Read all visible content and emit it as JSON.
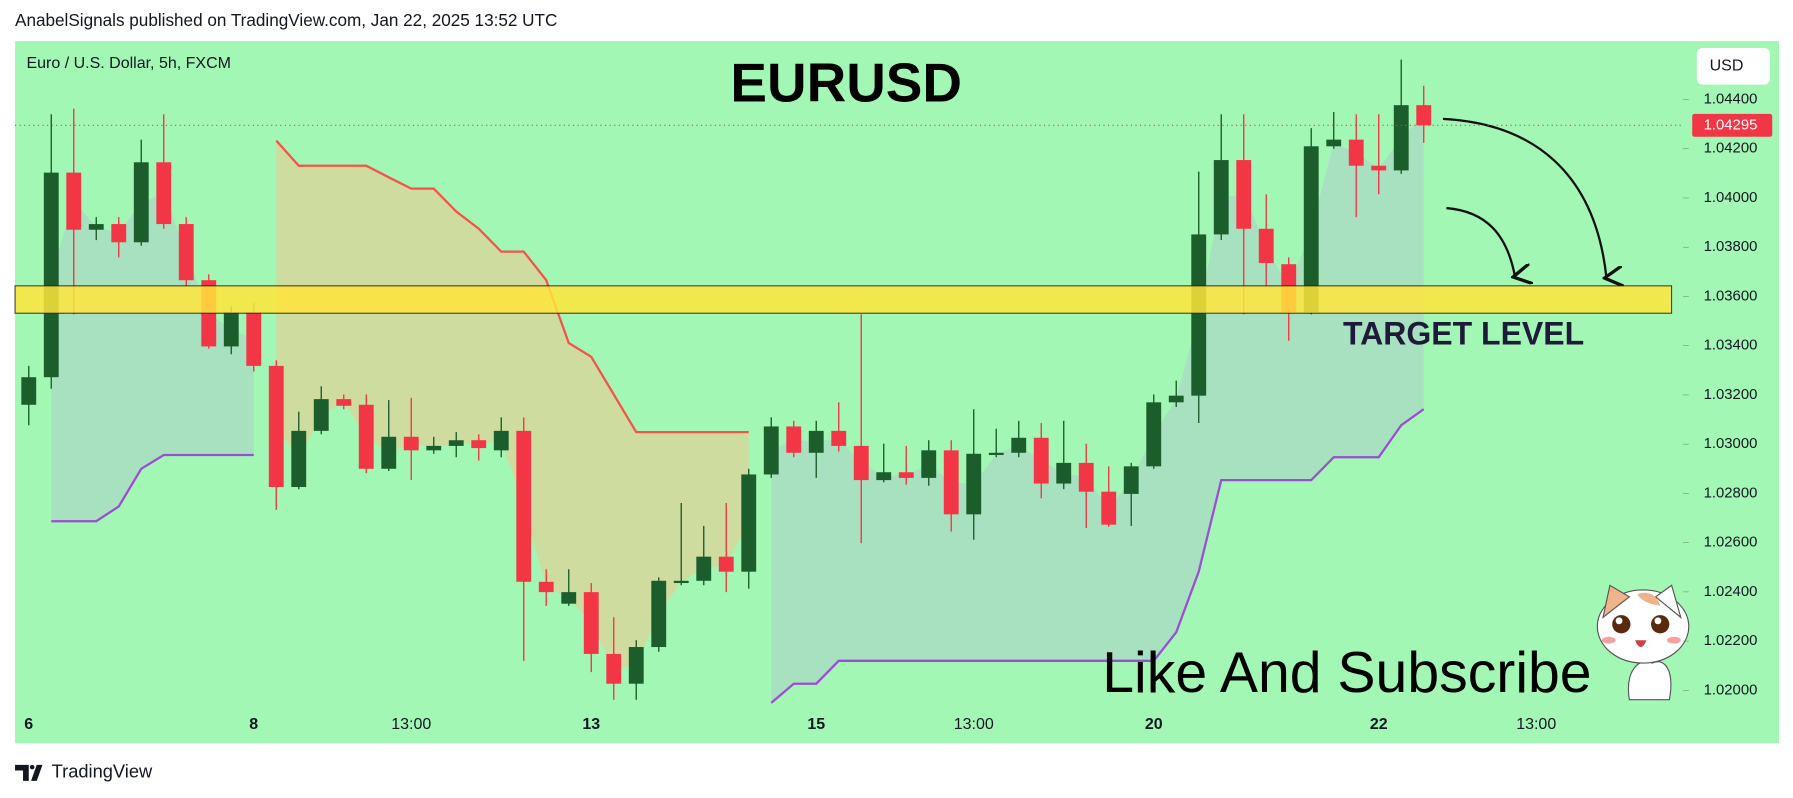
{
  "header": "AnabelSignals published on TradingView.com, Jan 22, 2025 13:52 UTC",
  "footer": "TradingView",
  "chart_data": {
    "type": "candlestick",
    "title": "EURUSD",
    "symbol": "Euro / U.S. Dollar, 5h, FXCM",
    "currency": "USD",
    "annotations": [
      "TARGET LEVEL",
      "Like And Subscribe"
    ],
    "up_color": "#1b5e2b",
    "down_color": "#f23645",
    "background": "#a3f7b5",
    "ylim": [
      1.01925,
      1.04637
    ],
    "yticks": [
      {
        "value": 1.02,
        "label": "1.02000"
      },
      {
        "value": 1.022,
        "label": "1.02200"
      },
      {
        "value": 1.024,
        "label": "1.02400"
      },
      {
        "value": 1.026,
        "label": "1.02600"
      },
      {
        "value": 1.028,
        "label": "1.02800"
      },
      {
        "value": 1.03,
        "label": "1.03000"
      },
      {
        "value": 1.032,
        "label": "1.03200"
      },
      {
        "value": 1.034,
        "label": "1.03400"
      },
      {
        "value": 1.036,
        "label": "1.03600"
      },
      {
        "value": 1.038,
        "label": "1.03800"
      },
      {
        "value": 1.04,
        "label": "1.04000"
      },
      {
        "value": 1.042,
        "label": "1.04200"
      },
      {
        "value": 1.044,
        "label": "1.04400"
      }
    ],
    "last_price": {
      "value": 1.04295,
      "label": "1.04295"
    },
    "zone": {
      "range": [
        1.03532,
        1.03643
      ],
      "color": "#ffe53b"
    },
    "categories": [
      "6",
      null,
      null,
      null,
      null,
      null,
      null,
      null,
      null,
      null,
      "8",
      null,
      null,
      null,
      null,
      null,
      null,
      "13:00",
      null,
      null,
      null,
      null,
      null,
      null,
      null,
      "13",
      null,
      null,
      null,
      null,
      null,
      null,
      null,
      null,
      null,
      "15",
      null,
      null,
      null,
      null,
      null,
      null,
      "13:00",
      null,
      null,
      null,
      null,
      null,
      null,
      null,
      "20",
      null,
      null,
      null,
      null,
      null,
      null,
      null,
      null,
      null,
      "22",
      null,
      null,
      null,
      null,
      null,
      null,
      "13:00",
      null,
      null,
      null,
      null,
      null,
      null
    ],
    "open": [
      1.0316,
      1.03272,
      1.04103,
      1.03871,
      1.03894,
      1.0382,
      1.04145,
      1.03894,
      1.03666,
      1.03397,
      1.03536,
      1.03318,
      1.02826,
      1.03054,
      1.03183,
      1.0316,
      1.029,
      1.0303,
      1.02975,
      1.02993,
      1.03016,
      1.02975,
      1.03054,
      1.02441,
      1.02352,
      1.02399,
      1.02148,
      1.02027,
      1.02176,
      1.02436,
      1.02445,
      1.02543,
      1.02482,
      1.02877,
      1.03072,
      1.02965,
      1.03054,
      1.02993,
      1.02854,
      1.02886,
      1.02863,
      1.02975,
      1.02715,
      1.02956,
      1.02965,
      1.03026,
      1.0284,
      1.02924,
      1.02807,
      1.02798,
      1.0291,
      1.0317,
      1.03197,
      1.03852,
      1.04154,
      1.03875,
      1.03731,
      1.03536,
      1.0421,
      1.04237,
      1.04131,
      1.04112,
      1.04377,
      null,
      null,
      null,
      null,
      null,
      null,
      null,
      null,
      null,
      null,
      null
    ],
    "high": [
      1.03318,
      1.0434,
      1.04363,
      1.03922,
      1.03922,
      1.04237,
      1.0434,
      1.03922,
      1.0369,
      1.0356,
      1.03574,
      1.03341,
      1.03132,
      1.03235,
      1.03202,
      1.03202,
      1.03179,
      1.03188,
      1.0303,
      1.03049,
      1.0304,
      1.03109,
      1.03109,
      1.02492,
      1.02492,
      1.02436,
      1.02297,
      1.02204,
      1.02459,
      1.02761,
      1.02668,
      1.02761,
      1.029,
      1.03109,
      1.03095,
      1.03095,
      1.0317,
      1.03527,
      1.03002,
      1.02993,
      1.03016,
      1.03016,
      1.03142,
      1.03063,
      1.03095,
      1.03086,
      1.03095,
      1.03002,
      1.0291,
      1.02924,
      1.03202,
      1.03258,
      1.04107,
      1.0434,
      1.0434,
      1.04015,
      1.03759,
      1.04284,
      1.04349,
      1.0434,
      1.0434,
      1.04562,
      1.04456,
      null,
      null,
      null,
      null,
      null,
      null,
      null,
      null,
      null,
      null,
      null
    ],
    "low": [
      1.03077,
      1.03225,
      1.03527,
      1.03829,
      1.03759,
      1.03806,
      1.03875,
      1.03643,
      1.03388,
      1.03365,
      1.03295,
      1.02733,
      1.02817,
      1.0304,
      1.03142,
      1.02882,
      1.02891,
      1.02854,
      1.02961,
      1.02947,
      1.02933,
      1.02947,
      1.0212,
      1.02343,
      1.02343,
      1.02074,
      1.01962,
      1.01962,
      1.02157,
      1.02427,
      1.02427,
      1.02399,
      1.02413,
      1.02863,
      1.02947,
      1.02863,
      1.0297,
      1.02598,
      1.02845,
      1.02835,
      1.02831,
      1.02645,
      1.02612,
      1.02947,
      1.02947,
      1.0278,
      1.02817,
      1.02659,
      1.02664,
      1.02668,
      1.029,
      1.03151,
      1.03086,
      1.03829,
      1.03527,
      1.03643,
      1.0342,
      1.03527,
      1.042,
      1.03922,
      1.04015,
      1.04098,
      1.04224,
      null,
      null,
      null,
      null,
      null,
      null,
      null,
      null,
      null,
      null,
      null
    ],
    "close": [
      1.03272,
      1.04103,
      1.03871,
      1.03894,
      1.0382,
      1.04145,
      1.03894,
      1.03666,
      1.03397,
      1.03536,
      1.03318,
      1.02826,
      1.03054,
      1.03183,
      1.03156,
      1.029,
      1.0303,
      1.02975,
      1.02993,
      1.03016,
      1.02984,
      1.03054,
      1.02441,
      1.02399,
      1.02399,
      1.02148,
      1.02027,
      1.02176,
      1.02445,
      1.02445,
      1.02543,
      1.02482,
      1.02877,
      1.03072,
      1.02965,
      1.03054,
      1.02993,
      1.02854,
      1.02886,
      1.02863,
      1.02975,
      1.02715,
      1.02961,
      1.02965,
      1.03026,
      1.0284,
      1.02924,
      1.02807,
      1.02673,
      1.0291,
      1.0317,
      1.03197,
      1.03852,
      1.04154,
      1.03875,
      1.03736,
      1.03536,
      1.0421,
      1.04237,
      1.04131,
      1.04112,
      1.04377,
      1.04295,
      null,
      null,
      null,
      null,
      null,
      null,
      null,
      null,
      null,
      null,
      null
    ],
    "bands": [
      {
        "color": "#f4534a",
        "fill": "#dcd39a",
        "values": [
          null,
          null,
          null,
          null,
          null,
          null,
          null,
          null,
          null,
          null,
          null,
          1.04233,
          1.04131,
          1.04131,
          1.04131,
          1.04131,
          1.04084,
          1.04038,
          1.04038,
          1.03945,
          1.03875,
          1.03782,
          1.03782,
          1.03666,
          1.03411,
          1.03355,
          1.03202,
          1.03049,
          1.03049,
          1.03049,
          1.03049,
          1.03049,
          1.03049,
          null,
          null,
          null,
          null,
          null,
          null,
          null,
          null,
          null,
          null,
          null,
          null,
          null,
          null,
          null,
          null,
          null,
          null,
          null,
          null,
          null,
          null,
          null,
          null,
          null,
          null,
          null,
          null,
          null,
          null,
          null,
          null,
          null,
          null,
          null,
          null,
          null,
          null,
          null,
          null,
          null
        ]
      },
      {
        "color": "#9b4fd0",
        "fill": "#a9d9c4",
        "values": [
          null,
          1.02687,
          1.02687,
          1.02687,
          1.02747,
          1.029,
          1.02956,
          1.02956,
          1.02956,
          1.02956,
          1.02956,
          null,
          null,
          null,
          null,
          null,
          null,
          null,
          null,
          null,
          null,
          null,
          null,
          null,
          null,
          null,
          null,
          null,
          null,
          null,
          null,
          null,
          null,
          1.01949,
          1.02027,
          1.02027,
          1.0212,
          1.0212,
          1.0212,
          1.0212,
          1.0212,
          1.0212,
          1.0212,
          1.0212,
          1.0212,
          1.0212,
          1.0212,
          1.0212,
          1.0212,
          1.0212,
          1.0212,
          1.02236,
          1.02482,
          1.02854,
          1.02854,
          1.02854,
          1.02854,
          1.02854,
          1.02947,
          1.02947,
          1.02947,
          1.03077,
          1.03142,
          null,
          null,
          null,
          null,
          null,
          null,
          null,
          null,
          null,
          null,
          null
        ]
      }
    ]
  }
}
